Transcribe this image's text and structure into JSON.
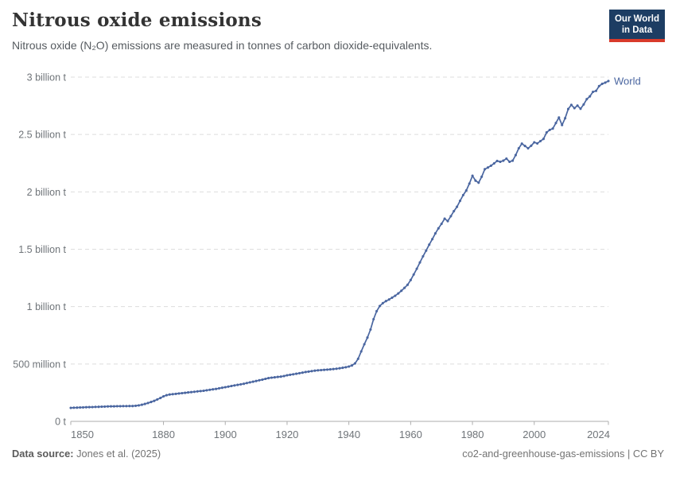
{
  "header": {
    "title": "Nitrous oxide emissions",
    "subtitle": "Nitrous oxide (N₂O) emissions are measured in tonnes of carbon dioxide-equivalents."
  },
  "logo": {
    "line1": "Our World",
    "line2": "in Data",
    "bg_color": "#1d3d63",
    "accent_color": "#d93a2b"
  },
  "footer": {
    "source_label": "Data source:",
    "source_value": " Jones et al. (2025)",
    "credit": "co2-and-greenhouse-gas-emissions | CC BY"
  },
  "chart_data": {
    "type": "line",
    "title": "Nitrous oxide emissions",
    "ylabel": "",
    "xlabel": "",
    "unit": "tonnes of carbon dioxide-equivalents",
    "values_unit": "million tonnes CO2-eq",
    "grid": "dashed horizontal",
    "legend_position": "end-of-line",
    "line_color": "#4a66a0",
    "x": {
      "min": 1850,
      "max": 2024,
      "ticks": [
        1850,
        1880,
        1900,
        1920,
        1940,
        1960,
        1980,
        2000,
        2024
      ]
    },
    "y": {
      "min_mt": 0,
      "max_mt": 3000,
      "ticks": [
        {
          "value_mt": 0,
          "label": "0 t"
        },
        {
          "value_mt": 500,
          "label": "500 million t"
        },
        {
          "value_mt": 1000,
          "label": "1 billion t"
        },
        {
          "value_mt": 1500,
          "label": "1.5 billion t"
        },
        {
          "value_mt": 2000,
          "label": "2 billion t"
        },
        {
          "value_mt": 2500,
          "label": "2.5 billion t"
        },
        {
          "value_mt": 3000,
          "label": "3 billion t"
        }
      ]
    },
    "series": [
      {
        "name": "World",
        "color": "#4a66a0",
        "year_start": 1850,
        "values_mt": [
          118,
          119,
          120,
          121,
          122,
          123,
          124,
          125,
          126,
          127,
          128,
          129,
          130,
          131,
          131,
          132,
          132,
          133,
          133,
          134,
          134,
          136,
          139,
          145,
          152,
          160,
          169,
          179,
          191,
          204,
          218,
          228,
          234,
          237,
          240,
          243,
          246,
          249,
          252,
          255,
          258,
          261,
          264,
          267,
          271,
          275,
          279,
          283,
          288,
          293,
          298,
          303,
          308,
          313,
          318,
          323,
          328,
          334,
          340,
          346,
          352,
          358,
          364,
          371,
          377,
          381,
          384,
          387,
          390,
          395,
          402,
          406,
          410,
          415,
          420,
          425,
          430,
          434,
          438,
          442,
          445,
          447,
          449,
          451,
          453,
          456,
          459,
          463,
          467,
          472,
          478,
          487,
          505,
          545,
          610,
          672,
          730,
          800,
          890,
          960,
          1005,
          1030,
          1048,
          1062,
          1078,
          1095,
          1115,
          1138,
          1163,
          1190,
          1232,
          1280,
          1330,
          1385,
          1438,
          1488,
          1540,
          1588,
          1638,
          1682,
          1722,
          1766,
          1745,
          1788,
          1832,
          1870,
          1922,
          1972,
          2012,
          2072,
          2140,
          2098,
          2080,
          2132,
          2198,
          2212,
          2228,
          2248,
          2270,
          2262,
          2272,
          2290,
          2262,
          2272,
          2320,
          2380,
          2420,
          2400,
          2380,
          2402,
          2432,
          2422,
          2442,
          2462,
          2518,
          2540,
          2552,
          2600,
          2648,
          2582,
          2642,
          2722,
          2758,
          2730,
          2752,
          2724,
          2762,
          2808,
          2832,
          2872,
          2880,
          2922,
          2942,
          2952,
          2966
        ]
      }
    ]
  }
}
